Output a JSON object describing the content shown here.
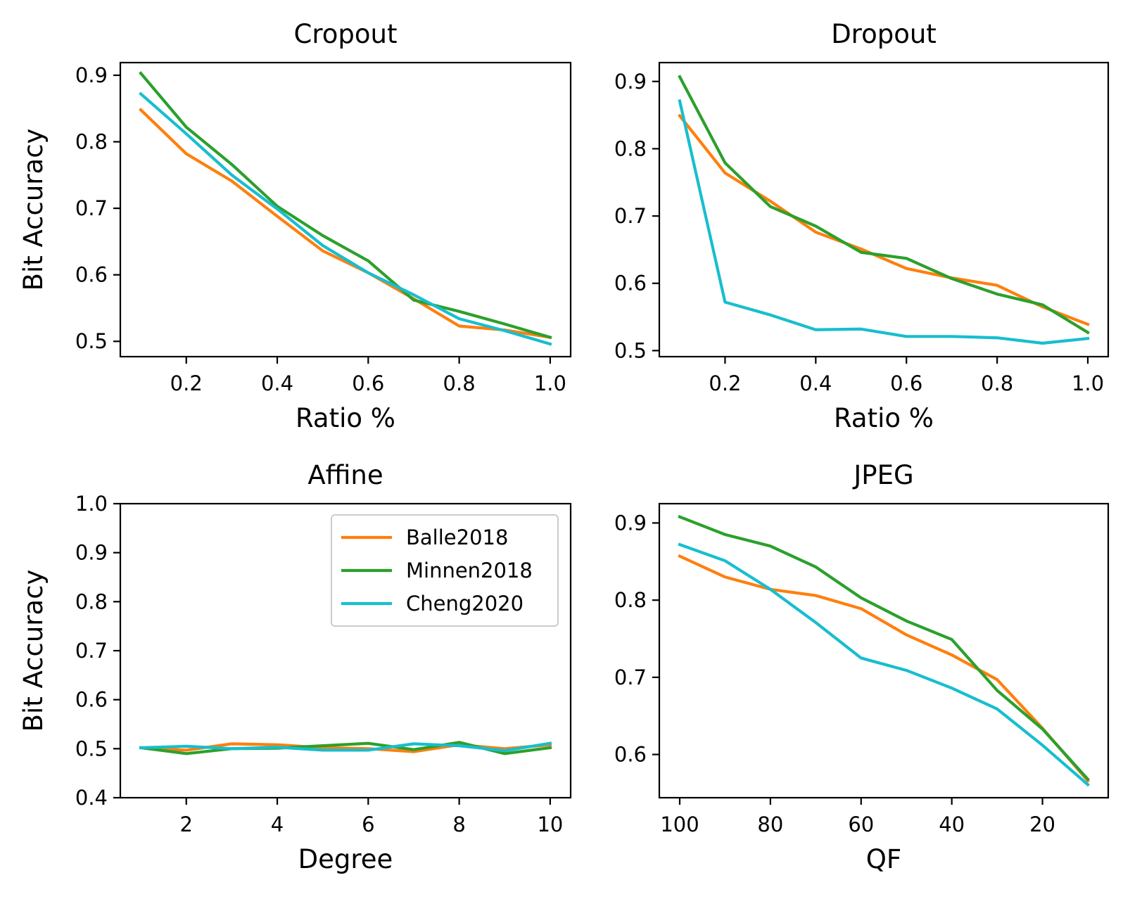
{
  "chart_data": [
    {
      "type": "line",
      "title": "Cropout",
      "xlabel": "Ratio %",
      "ylabel": "Bit Accuracy",
      "xlim": [
        0.055,
        1.045
      ],
      "ylim": [
        0.477,
        0.919
      ],
      "xticks": [
        0.2,
        0.4,
        0.6,
        0.8,
        1.0
      ],
      "xtick_labels": [
        "0.2",
        "0.4",
        "0.6",
        "0.8",
        "1.0"
      ],
      "yticks": [
        0.5,
        0.6,
        0.7,
        0.8,
        0.9
      ],
      "ytick_labels": [
        "0.5",
        "0.6",
        "0.7",
        "0.8",
        "0.9"
      ],
      "x": [
        0.1,
        0.2,
        0.3,
        0.4,
        0.5,
        0.6,
        0.7,
        0.8,
        0.9,
        1.0
      ],
      "series": [
        {
          "name": "Balle2018",
          "color": "#ff7f0e",
          "values": [
            0.848,
            0.782,
            0.741,
            0.688,
            0.636,
            0.603,
            0.564,
            0.523,
            0.517,
            0.506
          ]
        },
        {
          "name": "Minnen2018",
          "color": "#2ca02c",
          "values": [
            0.903,
            0.822,
            0.766,
            0.703,
            0.659,
            0.621,
            0.562,
            0.545,
            0.526,
            0.506
          ]
        },
        {
          "name": "Cheng2020",
          "color": "#17becf",
          "values": [
            0.872,
            0.812,
            0.75,
            0.699,
            0.644,
            0.603,
            0.57,
            0.534,
            0.516,
            0.496
          ]
        }
      ],
      "legend": null
    },
    {
      "type": "line",
      "title": "Dropout",
      "xlabel": "Ratio %",
      "ylabel": "",
      "xlim": [
        0.055,
        1.045
      ],
      "ylim": [
        0.491,
        0.928
      ],
      "xticks": [
        0.2,
        0.4,
        0.6,
        0.8,
        1.0
      ],
      "xtick_labels": [
        "0.2",
        "0.4",
        "0.6",
        "0.8",
        "1.0"
      ],
      "yticks": [
        0.5,
        0.6,
        0.7,
        0.8,
        0.9
      ],
      "ytick_labels": [
        "0.5",
        "0.6",
        "0.7",
        "0.8",
        "0.9"
      ],
      "x": [
        0.1,
        0.2,
        0.3,
        0.4,
        0.5,
        0.6,
        0.7,
        0.8,
        0.9,
        1.0
      ],
      "series": [
        {
          "name": "Balle2018",
          "color": "#ff7f0e",
          "values": [
            0.849,
            0.764,
            0.722,
            0.676,
            0.651,
            0.622,
            0.608,
            0.597,
            0.565,
            0.539
          ]
        },
        {
          "name": "Minnen2018",
          "color": "#2ca02c",
          "values": [
            0.907,
            0.779,
            0.714,
            0.685,
            0.646,
            0.637,
            0.607,
            0.584,
            0.568,
            0.527
          ]
        },
        {
          "name": "Cheng2020",
          "color": "#17becf",
          "values": [
            0.871,
            0.572,
            0.553,
            0.531,
            0.532,
            0.521,
            0.521,
            0.519,
            0.511,
            0.518
          ]
        }
      ],
      "legend": null
    },
    {
      "type": "line",
      "title": "Affine",
      "xlabel": "Degree",
      "ylabel": "Bit Accuracy",
      "xlim": [
        0.55,
        10.45
      ],
      "ylim": [
        0.4,
        1.0
      ],
      "xticks": [
        2,
        4,
        6,
        8,
        10
      ],
      "xtick_labels": [
        "2",
        "4",
        "6",
        "8",
        "10"
      ],
      "yticks": [
        0.4,
        0.5,
        0.6,
        0.7,
        0.8,
        0.9,
        1.0
      ],
      "ytick_labels": [
        "0.4",
        "0.5",
        "0.6",
        "0.7",
        "0.8",
        "0.9",
        "1.0"
      ],
      "x": [
        1,
        2,
        3,
        4,
        5,
        6,
        7,
        8,
        9,
        10
      ],
      "series": [
        {
          "name": "Balle2018",
          "color": "#ff7f0e",
          "values": [
            0.502,
            0.497,
            0.51,
            0.508,
            0.502,
            0.5,
            0.494,
            0.508,
            0.5,
            0.508
          ]
        },
        {
          "name": "Minnen2018",
          "color": "#2ca02c",
          "values": [
            0.502,
            0.49,
            0.5,
            0.501,
            0.506,
            0.511,
            0.498,
            0.513,
            0.49,
            0.502
          ]
        },
        {
          "name": "Cheng2020",
          "color": "#17becf",
          "values": [
            0.502,
            0.505,
            0.5,
            0.503,
            0.497,
            0.497,
            0.51,
            0.506,
            0.496,
            0.511
          ]
        }
      ],
      "legend": "top-right"
    },
    {
      "type": "line",
      "title": "JPEG",
      "xlabel": "QF",
      "ylabel": "",
      "xlim": [
        104.5,
        5.5
      ],
      "ylim": [
        0.544,
        0.925
      ],
      "xticks": [
        100,
        80,
        60,
        40,
        20
      ],
      "xtick_labels": [
        "100",
        "80",
        "60",
        "40",
        "20"
      ],
      "yticks": [
        0.6,
        0.7,
        0.8,
        0.9
      ],
      "ytick_labels": [
        "0.6",
        "0.7",
        "0.8",
        "0.9"
      ],
      "x": [
        100,
        90,
        80,
        70,
        60,
        50,
        40,
        30,
        20,
        10
      ],
      "series": [
        {
          "name": "Balle2018",
          "color": "#ff7f0e",
          "values": [
            0.857,
            0.83,
            0.814,
            0.806,
            0.789,
            0.755,
            0.729,
            0.697,
            0.634,
            0.566
          ]
        },
        {
          "name": "Minnen2018",
          "color": "#2ca02c",
          "values": [
            0.908,
            0.885,
            0.87,
            0.843,
            0.803,
            0.773,
            0.749,
            0.683,
            0.633,
            0.568
          ]
        },
        {
          "name": "Cheng2020",
          "color": "#17becf",
          "values": [
            0.872,
            0.851,
            0.814,
            0.771,
            0.725,
            0.709,
            0.686,
            0.659,
            0.612,
            0.561
          ]
        }
      ],
      "legend": null
    }
  ]
}
